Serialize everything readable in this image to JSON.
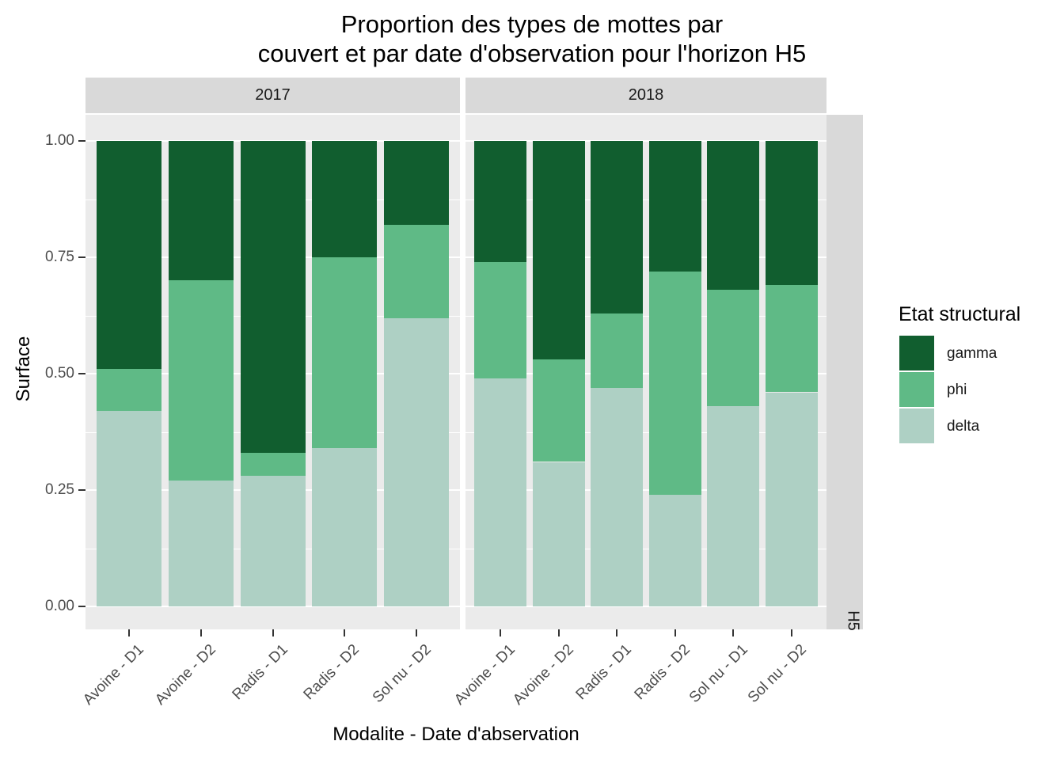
{
  "title": {
    "line1": "Proportion des types de mottes par",
    "line2": "couvert et par date d'observation pour l'horizon H5"
  },
  "y_axis": {
    "label": "Surface",
    "ticks": [
      {
        "label": "1.00",
        "value": 1.0
      },
      {
        "label": "0.75",
        "value": 0.75
      },
      {
        "label": "0.50",
        "value": 0.5
      },
      {
        "label": "0.25",
        "value": 0.25
      },
      {
        "label": "0.00",
        "value": 0.0
      }
    ]
  },
  "x_axis": {
    "label": "Modalite - Date d'abservation"
  },
  "right_strip_label": "H5",
  "legend": {
    "title": "Etat structural",
    "items": [
      {
        "label": "gamma",
        "color": "#115e2f"
      },
      {
        "label": "phi",
        "color": "#5fba86"
      },
      {
        "label": "delta",
        "color": "#aed0c4"
      }
    ]
  },
  "colors": {
    "gamma": "#115e2f",
    "phi": "#5fba86",
    "delta": "#aed0c4",
    "panel_bg": "#ebebeb",
    "strip_bg": "#d9d9d9",
    "grid": "#ffffff",
    "tick_text": "#4d4d4d"
  },
  "chart_data": {
    "type": "bar",
    "stacked": true,
    "title": "Proportion des types de mottes par couvert et par date d'observation pour l'horizon H5",
    "xlabel": "Modalite - Date d'abservation",
    "ylabel": "Surface",
    "ylim": [
      0,
      1
    ],
    "ytick_values": [
      0.0,
      0.25,
      0.5,
      0.75,
      1.0
    ],
    "legend_position": "right",
    "grid": true,
    "stack_order_bottom_to_top": [
      "delta",
      "phi",
      "gamma"
    ],
    "facets": [
      {
        "label": "2017",
        "categories": [
          "Avoine - D1",
          "Avoine - D2",
          "Radis - D1",
          "Radis - D2",
          "Sol nu - D2"
        ],
        "series": [
          {
            "name": "delta",
            "values": [
              0.42,
              0.27,
              0.28,
              0.34,
              0.62
            ]
          },
          {
            "name": "phi",
            "values": [
              0.09,
              0.43,
              0.05,
              0.41,
              0.2
            ]
          },
          {
            "name": "gamma",
            "values": [
              0.49,
              0.3,
              0.67,
              0.25,
              0.18
            ]
          }
        ]
      },
      {
        "label": "2018",
        "categories": [
          "Avoine - D1",
          "Avoine - D2",
          "Radis - D1",
          "Radis - D2",
          "Sol nu - D1",
          "Sol nu - D2"
        ],
        "series": [
          {
            "name": "delta",
            "values": [
              0.49,
              0.31,
              0.47,
              0.24,
              0.43,
              0.46
            ]
          },
          {
            "name": "phi",
            "values": [
              0.25,
              0.22,
              0.16,
              0.48,
              0.25,
              0.23
            ]
          },
          {
            "name": "gamma",
            "values": [
              0.26,
              0.47,
              0.37,
              0.28,
              0.32,
              0.31
            ]
          }
        ]
      }
    ]
  }
}
